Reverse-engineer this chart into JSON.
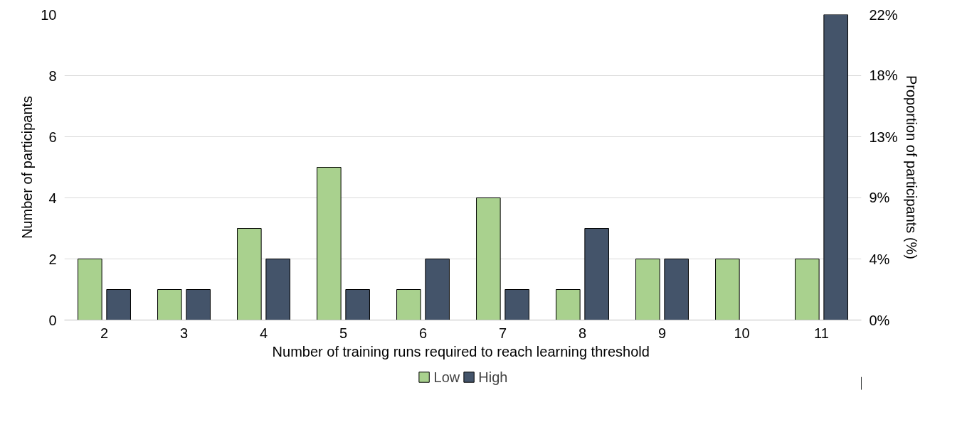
{
  "chart_data": {
    "type": "bar",
    "xlabel": "Number of  training runs required to reach learning threshold",
    "ylabel": "Number of participants",
    "y2label": "Proportion of participants (%)",
    "categories": [
      "2",
      "3",
      "4",
      "5",
      "6",
      "7",
      "8",
      "9",
      "10",
      "11"
    ],
    "series": [
      {
        "name": "Low",
        "color": "#a9d18e",
        "values": [
          2,
          1,
          3,
          5,
          1,
          4,
          1,
          2,
          2,
          2
        ]
      },
      {
        "name": "High",
        "color": "#44546a",
        "values": [
          1,
          1,
          2,
          1,
          2,
          1,
          3,
          2,
          null,
          10
        ]
      }
    ],
    "ylim": [
      0,
      10
    ],
    "yticks": [
      0,
      2,
      4,
      6,
      8,
      10
    ],
    "y2lim": [
      0,
      22.22
    ],
    "y2ticks": [
      {
        "value": 0,
        "label": "0%"
      },
      {
        "value": 4.44,
        "label": "4%"
      },
      {
        "value": 8.89,
        "label": "9%"
      },
      {
        "value": 13.33,
        "label": "13%"
      },
      {
        "value": 17.78,
        "label": "18%"
      },
      {
        "value": 22.22,
        "label": "22%"
      }
    ],
    "grid": "y",
    "legend": "bottom"
  }
}
